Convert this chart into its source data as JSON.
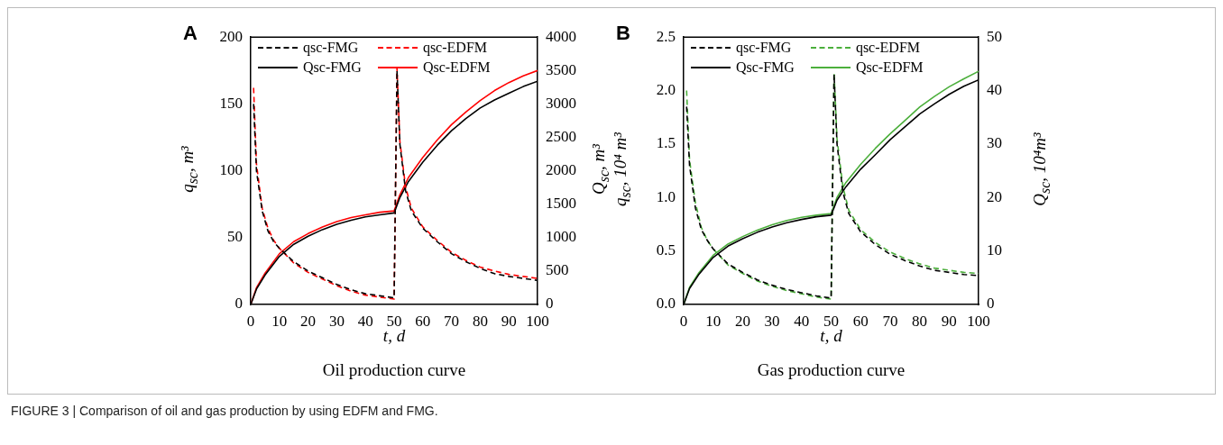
{
  "chart_data": [
    {
      "type": "line",
      "title": "A",
      "subtitle": "Oil production curve",
      "xlabel": "t, d",
      "ylabel": "q$_{sc}$, m³",
      "y2label": "Q$_{sc}$, m³",
      "xlim": [
        0,
        100
      ],
      "xticks": [
        0,
        10,
        20,
        30,
        40,
        50,
        60,
        70,
        80,
        90,
        100
      ],
      "ylim": [
        0,
        200
      ],
      "yticks": [
        0,
        50,
        100,
        150,
        200
      ],
      "y2lim": [
        0,
        4000
      ],
      "y2ticks": [
        0,
        500,
        1000,
        1500,
        2000,
        2500,
        3000,
        3500,
        4000
      ],
      "grid": false,
      "legend": "top",
      "marker": "none",
      "series": [
        {
          "name": "qsc-FMG",
          "color": "#000000",
          "line_style": "dashed",
          "x": [
            1,
            2,
            4,
            6,
            8,
            10,
            15,
            20,
            25,
            30,
            35,
            40,
            45,
            50,
            51,
            52,
            54,
            56,
            60,
            65,
            70,
            75,
            80,
            85,
            90,
            95,
            100
          ],
          "values": [
            150,
            100,
            70,
            55,
            47,
            42,
            32,
            25,
            20,
            15,
            11,
            8,
            6.5,
            5,
            175,
            120,
            85,
            70,
            57,
            47,
            38,
            32,
            27,
            23,
            21,
            19.5,
            18
          ]
        },
        {
          "name": "qsc-EDFM",
          "color": "#ff0000",
          "line_style": "dashed",
          "x": [
            1,
            2,
            4,
            6,
            8,
            10,
            15,
            20,
            25,
            30,
            35,
            40,
            45,
            50,
            51,
            52,
            54,
            56,
            60,
            65,
            70,
            75,
            80,
            85,
            90,
            95,
            100
          ],
          "values": [
            162,
            105,
            72,
            57,
            48,
            42,
            31,
            24,
            19,
            14,
            10,
            7,
            5.5,
            4,
            177,
            122,
            88,
            72,
            58,
            48,
            39,
            33,
            28,
            25,
            22.5,
            21,
            19.5
          ]
        },
        {
          "name": "Qsc-FMG",
          "color": "#000000",
          "line_style": "solid",
          "axis": "y2",
          "x": [
            0,
            2,
            5,
            10,
            15,
            20,
            25,
            30,
            35,
            40,
            45,
            50,
            52,
            55,
            60,
            65,
            70,
            75,
            80,
            85,
            90,
            95,
            100
          ],
          "values": [
            0,
            230,
            440,
            720,
            900,
            1020,
            1120,
            1200,
            1260,
            1310,
            1340,
            1370,
            1600,
            1840,
            2130,
            2380,
            2600,
            2780,
            2940,
            3060,
            3160,
            3260,
            3340
          ]
        },
        {
          "name": "Qsc-EDFM",
          "color": "#ff0000",
          "line_style": "solid",
          "axis": "y2",
          "x": [
            0,
            2,
            5,
            10,
            15,
            20,
            25,
            30,
            35,
            40,
            45,
            50,
            52,
            55,
            60,
            65,
            70,
            75,
            80,
            85,
            90,
            95,
            100
          ],
          "values": [
            0,
            250,
            470,
            760,
            940,
            1060,
            1160,
            1240,
            1300,
            1340,
            1380,
            1400,
            1640,
            1900,
            2200,
            2460,
            2690,
            2880,
            3050,
            3200,
            3320,
            3420,
            3500
          ]
        }
      ],
      "annotations": [
        "FIGURE 3 | Comparison of oil and gas production by using EDFM and FMG."
      ]
    },
    {
      "type": "line",
      "title": "B",
      "subtitle": "Gas production curve",
      "xlabel": "t, d",
      "ylabel": "q$_{sc}$, 10⁴ m³",
      "y2label": "Q$_{sc}$, 10⁴m³",
      "xlim": [
        0,
        100
      ],
      "xticks": [
        0,
        10,
        20,
        30,
        40,
        50,
        60,
        70,
        80,
        90,
        100
      ],
      "ylim": [
        0,
        2.5
      ],
      "yticks": [
        {
          "value": 0,
          "label": "0.0"
        },
        {
          "value": 0.5,
          "label": "0.5"
        },
        {
          "value": 1,
          "label": "1.0"
        },
        {
          "value": 1.5,
          "label": "1.5"
        },
        {
          "value": 2,
          "label": "2.0"
        },
        {
          "value": 2.5,
          "label": "2.5"
        }
      ],
      "y2lim": [
        0,
        50
      ],
      "y2ticks": [
        0,
        10,
        20,
        30,
        40,
        50
      ],
      "grid": false,
      "legend": "top",
      "marker": "none",
      "series": [
        {
          "name": "qsc-FMG",
          "color": "#000000",
          "line_style": "dashed",
          "x": [
            1,
            2,
            4,
            6,
            8,
            10,
            15,
            20,
            25,
            30,
            35,
            40,
            45,
            50,
            51,
            52,
            54,
            56,
            60,
            65,
            70,
            75,
            80,
            85,
            90,
            95,
            100
          ],
          "values": [
            1.85,
            1.3,
            0.9,
            0.7,
            0.6,
            0.52,
            0.38,
            0.3,
            0.23,
            0.18,
            0.14,
            0.11,
            0.08,
            0.06,
            2.15,
            1.5,
            1.05,
            0.85,
            0.68,
            0.56,
            0.47,
            0.41,
            0.36,
            0.32,
            0.3,
            0.28,
            0.27
          ]
        },
        {
          "name": "qsc-EDFM",
          "color": "#4caf3c",
          "line_style": "dashed",
          "x": [
            1,
            2,
            4,
            6,
            8,
            10,
            15,
            20,
            25,
            30,
            35,
            40,
            45,
            50,
            51,
            52,
            54,
            56,
            60,
            65,
            70,
            75,
            80,
            85,
            90,
            95,
            100
          ],
          "values": [
            2.0,
            1.35,
            0.95,
            0.72,
            0.6,
            0.52,
            0.37,
            0.29,
            0.22,
            0.17,
            0.13,
            0.1,
            0.07,
            0.05,
            2.17,
            1.55,
            1.1,
            0.88,
            0.7,
            0.58,
            0.49,
            0.43,
            0.38,
            0.34,
            0.32,
            0.3,
            0.29
          ]
        },
        {
          "name": "Qsc-FMG",
          "color": "#000000",
          "line_style": "solid",
          "axis": "y2",
          "x": [
            0,
            2,
            5,
            10,
            15,
            20,
            25,
            30,
            35,
            40,
            45,
            50,
            52,
            55,
            60,
            65,
            70,
            75,
            80,
            85,
            90,
            95,
            100
          ],
          "values": [
            0,
            3,
            5.5,
            8.8,
            10.9,
            12.3,
            13.5,
            14.5,
            15.3,
            15.9,
            16.4,
            16.7,
            19.5,
            22,
            25.3,
            28,
            30.8,
            33.2,
            35.6,
            37.5,
            39.3,
            40.8,
            42
          ]
        },
        {
          "name": "Qsc-EDFM",
          "color": "#4caf3c",
          "line_style": "solid",
          "axis": "y2",
          "x": [
            0,
            2,
            5,
            10,
            15,
            20,
            25,
            30,
            35,
            40,
            45,
            50,
            52,
            55,
            60,
            65,
            70,
            75,
            80,
            85,
            90,
            95,
            100
          ],
          "values": [
            0,
            3.2,
            5.8,
            9.2,
            11.3,
            12.7,
            13.9,
            14.9,
            15.7,
            16.3,
            16.7,
            17,
            20,
            22.8,
            26.2,
            29.2,
            31.9,
            34.4,
            36.9,
            38.9,
            40.7,
            42.2,
            43.6
          ]
        }
      ]
    }
  ]
}
